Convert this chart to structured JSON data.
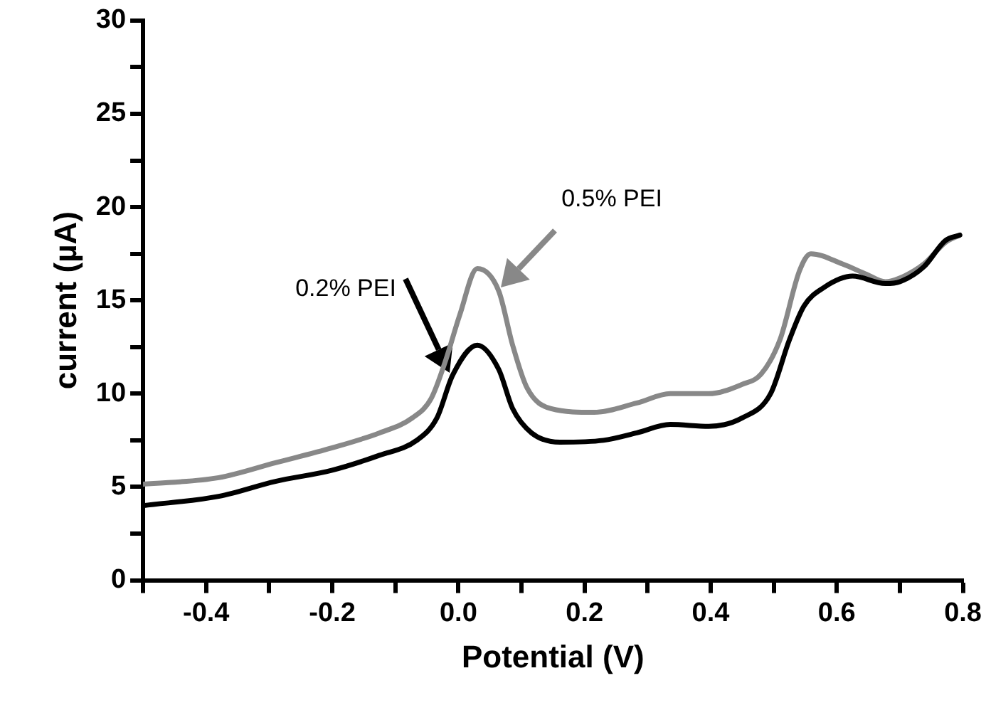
{
  "chart_data": {
    "type": "line",
    "xlabel": "Potential (V)",
    "ylabel": "current (µA)",
    "xlim": [
      -0.5,
      0.8
    ],
    "ylim": [
      0,
      30
    ],
    "xticks": [
      {
        "value": -0.5,
        "label": null
      },
      -0.4,
      {
        "value": -0.3,
        "label": null
      },
      -0.2,
      {
        "value": -0.1,
        "label": null
      },
      {
        "value": 0,
        "label": "0.0"
      },
      {
        "value": 0.1,
        "label": null
      },
      0.2,
      {
        "value": 0.3,
        "label": null
      },
      0.4,
      {
        "value": 0.5,
        "label": null
      },
      0.6,
      {
        "value": 0.7,
        "label": null
      },
      0.8
    ],
    "yticks": [
      0,
      {
        "value": 2.5,
        "label": null
      },
      5,
      {
        "value": 7.5,
        "label": null
      },
      10,
      {
        "value": 12.5,
        "label": null
      },
      15,
      {
        "value": 17.5,
        "label": null
      },
      20,
      {
        "value": 22.5,
        "label": null
      },
      25,
      {
        "value": 27.5,
        "label": null
      },
      30
    ],
    "grid": false,
    "legend": false,
    "marker": "none",
    "line_style": "solid",
    "series": [
      {
        "color": "#000000",
        "x": [
          -0.5,
          -0.38,
          -0.29,
          -0.2,
          -0.125,
          -0.066,
          -0.034,
          -0.009,
          0.03,
          0.064,
          0.086,
          0.116,
          0.161,
          0.23,
          0.283,
          0.336,
          0.397,
          0.45,
          0.495,
          0.525,
          0.548,
          0.58,
          0.625,
          0.677,
          0.7,
          0.738,
          0.772,
          0.795
        ],
        "values": [
          4.0,
          4.5,
          5.3,
          5.9,
          6.7,
          7.5,
          8.7,
          11.0,
          12.6,
          11.3,
          9.2,
          7.9,
          7.4,
          7.5,
          7.9,
          8.35,
          8.25,
          8.7,
          10.0,
          12.9,
          14.7,
          15.7,
          16.3,
          15.9,
          16.0,
          16.8,
          18.2,
          18.5
        ]
      },
      {
        "color": "#888888",
        "x": [
          -0.5,
          -0.38,
          -0.29,
          -0.2,
          -0.125,
          -0.073,
          -0.043,
          -0.02,
          0.002,
          0.03,
          0.064,
          0.086,
          0.109,
          0.147,
          0.215,
          0.283,
          0.336,
          0.397,
          0.45,
          0.48,
          0.51,
          0.541,
          0.559,
          0.609,
          0.647,
          0.677,
          0.7,
          0.738,
          0.772,
          0.795
        ],
        "values": [
          5.15,
          5.5,
          6.3,
          7.1,
          7.9,
          8.7,
          9.75,
          11.8,
          14.2,
          16.7,
          15.5,
          12.6,
          10.3,
          9.2,
          9.0,
          9.5,
          10.0,
          10.0,
          10.5,
          11.05,
          12.9,
          16.6,
          17.5,
          16.95,
          16.4,
          16.0,
          16.2,
          16.95,
          18.1,
          18.5
        ]
      }
    ],
    "annotations": [
      "0.2% PEI",
      "0.5% PEI"
    ]
  }
}
